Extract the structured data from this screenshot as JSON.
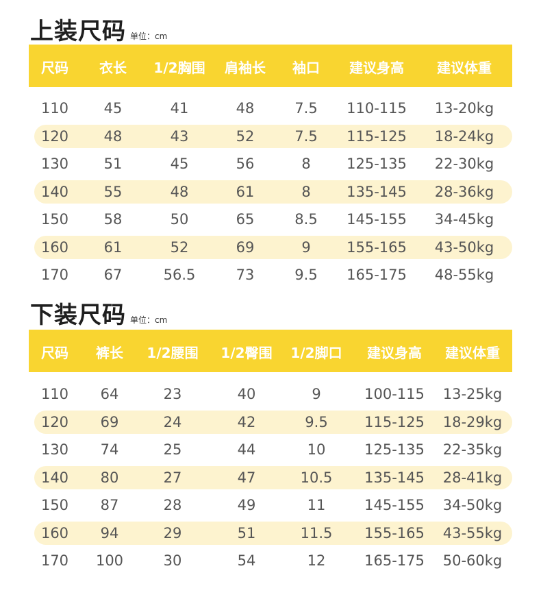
{
  "top": {
    "title": "上装尺码",
    "unit": "单位：cm",
    "headers": [
      "尺码",
      "衣长",
      "1/2胸围",
      "肩袖长",
      "袖口",
      "建议身高",
      "建议体重"
    ],
    "rows": [
      [
        "110",
        "45",
        "41",
        "48",
        "7.5",
        "110-115",
        "13-20kg"
      ],
      [
        "120",
        "48",
        "43",
        "52",
        "7.5",
        "115-125",
        "18-24kg"
      ],
      [
        "130",
        "51",
        "45",
        "56",
        "8",
        "125-135",
        "22-30kg"
      ],
      [
        "140",
        "55",
        "48",
        "61",
        "8",
        "135-145",
        "28-36kg"
      ],
      [
        "150",
        "58",
        "50",
        "65",
        "8.5",
        "145-155",
        "34-45kg"
      ],
      [
        "160",
        "61",
        "52",
        "69",
        "9",
        "155-165",
        "43-50kg"
      ],
      [
        "170",
        "67",
        "56.5",
        "73",
        "9.5",
        "165-175",
        "48-55kg"
      ]
    ]
  },
  "bottom": {
    "title": "下装尺码",
    "unit": "单位：cm",
    "headers": [
      "尺码",
      "裤长",
      "1/2腰围",
      "1/2臀围",
      "1/2脚口",
      "建议身高",
      "建议体重"
    ],
    "rows": [
      [
        "110",
        "64",
        "23",
        "40",
        "9",
        "100-115",
        "13-25kg"
      ],
      [
        "120",
        "69",
        "24",
        "42",
        "9.5",
        "115-125",
        "18-29kg"
      ],
      [
        "130",
        "74",
        "25",
        "44",
        "10",
        "125-135",
        "22-35kg"
      ],
      [
        "140",
        "80",
        "27",
        "47",
        "10.5",
        "135-145",
        "28-41kg"
      ],
      [
        "150",
        "87",
        "28",
        "49",
        "11",
        "145-155",
        "34-50kg"
      ],
      [
        "160",
        "94",
        "29",
        "51",
        "11.5",
        "155-165",
        "43-55kg"
      ],
      [
        "170",
        "100",
        "30",
        "54",
        "12",
        "165-175",
        "50-60kg"
      ]
    ]
  },
  "colors": {
    "header": "#f9d530",
    "stripe": "#fdf3cf",
    "text": "#555555"
  }
}
